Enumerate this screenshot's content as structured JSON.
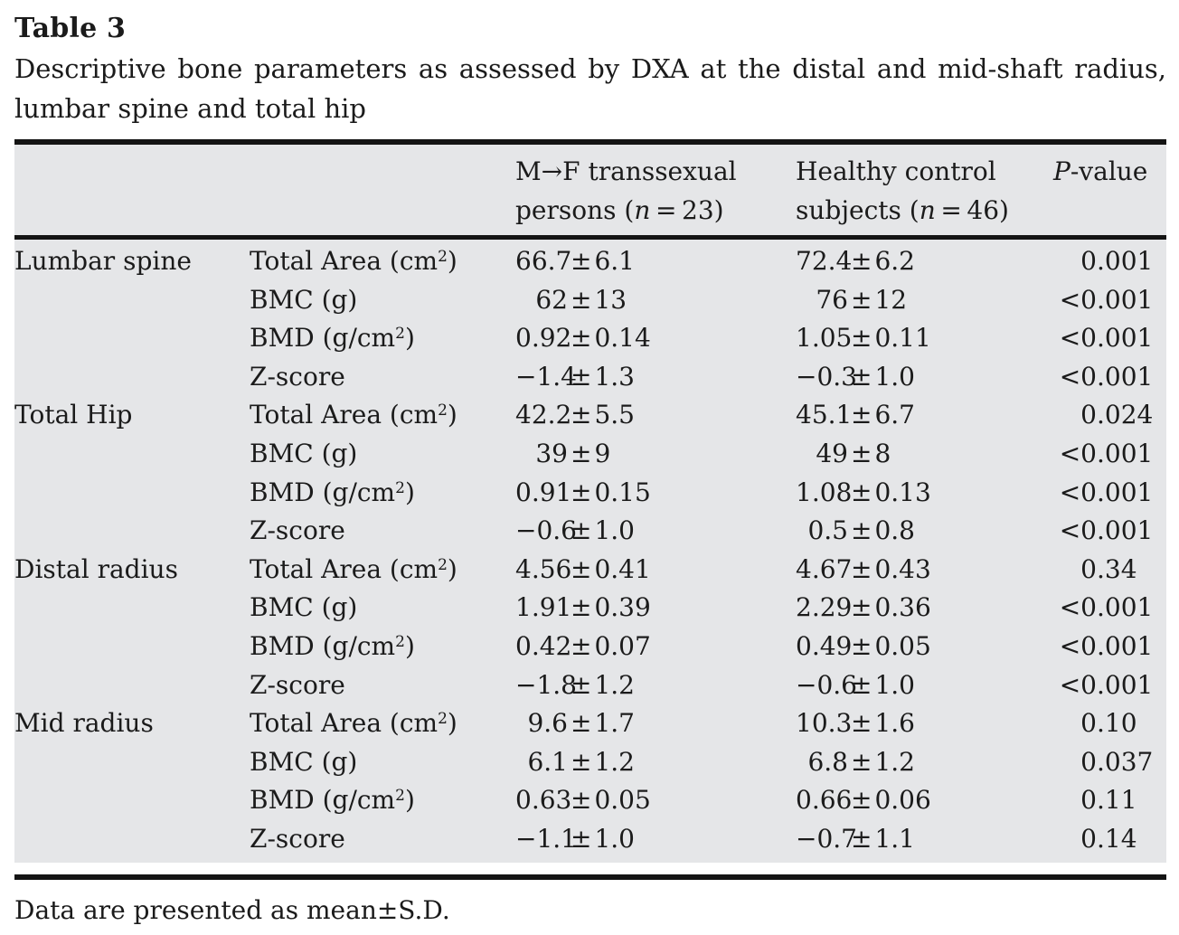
{
  "pm": "±",
  "title": "Table 3",
  "caption": "Descriptive bone parameters as assessed by DXA at the distal and mid-shaft radius, lumbar spine and total hip",
  "footnote": "Data are presented as mean±S.D.",
  "header": {
    "mf_line1": "M→F transsexual",
    "mf_line2_pre": "persons (",
    "mf_n": "n",
    "mf_line2_post": " = 23)",
    "hc_line1": "Healthy control",
    "hc_line2_pre": "subjects (",
    "hc_n": "n",
    "hc_line2_post": " = 46)",
    "p_italic": "P",
    "p_rest": "-value"
  },
  "rows": [
    {
      "group": "Lumbar spine",
      "param": {
        "base": "Total Area (cm",
        "sup": "2",
        "tail": ")"
      },
      "mf": {
        "mean": "66.7",
        "sd": "6.1"
      },
      "hc": {
        "mean": "72.4",
        "sd": "6.2"
      },
      "p": {
        "pre": "0",
        "post": ".001"
      }
    },
    {
      "group": "",
      "param": {
        "base": "BMC (g)",
        "sup": "",
        "tail": ""
      },
      "mf": {
        "mean": "62",
        "sd": "13"
      },
      "hc": {
        "mean": "76",
        "sd": "12"
      },
      "p": {
        "pre": "<0",
        "post": ".001"
      }
    },
    {
      "group": "",
      "param": {
        "base": "BMD (g/cm",
        "sup": "2",
        "tail": ")"
      },
      "mf": {
        "mean": "0.92",
        "sd": "0.14"
      },
      "hc": {
        "mean": "1.05",
        "sd": "0.11"
      },
      "p": {
        "pre": "<0",
        "post": ".001"
      }
    },
    {
      "group": "",
      "param": {
        "base": "Z-score",
        "sup": "",
        "tail": ""
      },
      "mf": {
        "mean": "−1.4",
        "sd": "1.3"
      },
      "hc": {
        "mean": "−0.3",
        "sd": "1.0"
      },
      "p": {
        "pre": "<0",
        "post": ".001"
      }
    },
    {
      "group": "Total Hip",
      "param": {
        "base": "Total Area (cm",
        "sup": "2",
        "tail": ")"
      },
      "mf": {
        "mean": "42.2",
        "sd": "5.5"
      },
      "hc": {
        "mean": "45.1",
        "sd": "6.7"
      },
      "p": {
        "pre": "0",
        "post": ".024"
      }
    },
    {
      "group": "",
      "param": {
        "base": "BMC (g)",
        "sup": "",
        "tail": ""
      },
      "mf": {
        "mean": "39",
        "sd": "9"
      },
      "hc": {
        "mean": "49",
        "sd": "8"
      },
      "p": {
        "pre": "<0",
        "post": ".001"
      }
    },
    {
      "group": "",
      "param": {
        "base": "BMD (g/cm",
        "sup": "2",
        "tail": ")"
      },
      "mf": {
        "mean": "0.91",
        "sd": "0.15"
      },
      "hc": {
        "mean": "1.08",
        "sd": "0.13"
      },
      "p": {
        "pre": "<0",
        "post": ".001"
      }
    },
    {
      "group": "",
      "param": {
        "base": "Z-score",
        "sup": "",
        "tail": ""
      },
      "mf": {
        "mean": "−0.6",
        "sd": "1.0"
      },
      "hc": {
        "mean": "0.5",
        "sd": "0.8"
      },
      "p": {
        "pre": "<0",
        "post": ".001"
      }
    },
    {
      "group": "Distal radius",
      "param": {
        "base": "Total Area (cm",
        "sup": "2",
        "tail": ")"
      },
      "mf": {
        "mean": "4.56",
        "sd": "0.41"
      },
      "hc": {
        "mean": "4.67",
        "sd": "0.43"
      },
      "p": {
        "pre": "0",
        "post": ".34"
      }
    },
    {
      "group": "",
      "param": {
        "base": "BMC (g)",
        "sup": "",
        "tail": ""
      },
      "mf": {
        "mean": "1.91",
        "sd": "0.39"
      },
      "hc": {
        "mean": "2.29",
        "sd": "0.36"
      },
      "p": {
        "pre": "<0",
        "post": ".001"
      }
    },
    {
      "group": "",
      "param": {
        "base": "BMD (g/cm",
        "sup": "2",
        "tail": ")"
      },
      "mf": {
        "mean": "0.42",
        "sd": "0.07"
      },
      "hc": {
        "mean": "0.49",
        "sd": "0.05"
      },
      "p": {
        "pre": "<0",
        "post": ".001"
      }
    },
    {
      "group": "",
      "param": {
        "base": "Z-score",
        "sup": "",
        "tail": ""
      },
      "mf": {
        "mean": "−1.8",
        "sd": "1.2"
      },
      "hc": {
        "mean": "−0.6",
        "sd": "1.0"
      },
      "p": {
        "pre": "<0",
        "post": ".001"
      }
    },
    {
      "group": "Mid radius",
      "param": {
        "base": "Total Area (cm",
        "sup": "2",
        "tail": ")"
      },
      "mf": {
        "mean": "9.6",
        "sd": "1.7"
      },
      "hc": {
        "mean": "10.3",
        "sd": "1.6"
      },
      "p": {
        "pre": "0",
        "post": ".10"
      }
    },
    {
      "group": "",
      "param": {
        "base": "BMC (g)",
        "sup": "",
        "tail": ""
      },
      "mf": {
        "mean": "6.1",
        "sd": "1.2"
      },
      "hc": {
        "mean": "6.8",
        "sd": "1.2"
      },
      "p": {
        "pre": "0",
        "post": ".037"
      }
    },
    {
      "group": "",
      "param": {
        "base": "BMD (g/cm",
        "sup": "2",
        "tail": ")"
      },
      "mf": {
        "mean": "0.63",
        "sd": "0.05"
      },
      "hc": {
        "mean": "0.66",
        "sd": "0.06"
      },
      "p": {
        "pre": "0",
        "post": ".11"
      }
    },
    {
      "group": "",
      "param": {
        "base": "Z-score",
        "sup": "",
        "tail": ""
      },
      "mf": {
        "mean": "−1.1",
        "sd": "1.0"
      },
      "hc": {
        "mean": "−0.7",
        "sd": "1.1"
      },
      "p": {
        "pre": "0",
        "post": ".14"
      }
    }
  ]
}
